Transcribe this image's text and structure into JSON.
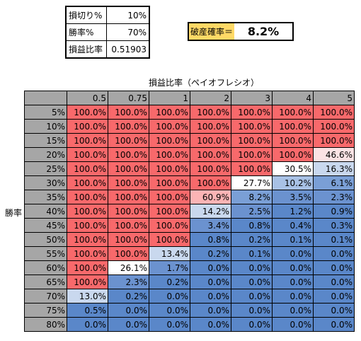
{
  "params": [
    {
      "label": "損切り%",
      "value": "10%"
    },
    {
      "label": "勝率%",
      "value": "70%"
    },
    {
      "label": "損益比率",
      "value": "0.51903"
    }
  ],
  "ruin": {
    "label": "破産確率＝",
    "value": "8.2%"
  },
  "table": {
    "x_header": "損益比率（ペイオフレシオ）",
    "y_header": "勝率",
    "columns": [
      "0.5",
      "0.75",
      "1",
      "2",
      "3",
      "4",
      "5"
    ],
    "rows": [
      {
        "label": "5%",
        "cells": [
          "100.0%",
          "100.0%",
          "100.0%",
          "100.0%",
          "100.0%",
          "100.0%",
          "100.0%"
        ]
      },
      {
        "label": "10%",
        "cells": [
          "100.0%",
          "100.0%",
          "100.0%",
          "100.0%",
          "100.0%",
          "100.0%",
          "100.0%"
        ]
      },
      {
        "label": "15%",
        "cells": [
          "100.0%",
          "100.0%",
          "100.0%",
          "100.0%",
          "100.0%",
          "100.0%",
          "100.0%"
        ]
      },
      {
        "label": "20%",
        "cells": [
          "100.0%",
          "100.0%",
          "100.0%",
          "100.0%",
          "100.0%",
          "100.0%",
          "46.6%"
        ]
      },
      {
        "label": "25%",
        "cells": [
          "100.0%",
          "100.0%",
          "100.0%",
          "100.0%",
          "100.0%",
          "30.5%",
          "16.3%"
        ]
      },
      {
        "label": "30%",
        "cells": [
          "100.0%",
          "100.0%",
          "100.0%",
          "100.0%",
          "27.7%",
          "10.2%",
          "6.1%"
        ]
      },
      {
        "label": "35%",
        "cells": [
          "100.0%",
          "100.0%",
          "100.0%",
          "60.9%",
          "8.2%",
          "3.5%",
          "2.3%"
        ]
      },
      {
        "label": "40%",
        "cells": [
          "100.0%",
          "100.0%",
          "100.0%",
          "14.2%",
          "2.5%",
          "1.2%",
          "0.9%"
        ]
      },
      {
        "label": "45%",
        "cells": [
          "100.0%",
          "100.0%",
          "100.0%",
          "3.4%",
          "0.8%",
          "0.4%",
          "0.3%"
        ]
      },
      {
        "label": "50%",
        "cells": [
          "100.0%",
          "100.0%",
          "100.0%",
          "0.8%",
          "0.2%",
          "0.1%",
          "0.1%"
        ]
      },
      {
        "label": "55%",
        "cells": [
          "100.0%",
          "100.0%",
          "13.4%",
          "0.2%",
          "0.1%",
          "0.0%",
          "0.0%"
        ]
      },
      {
        "label": "60%",
        "cells": [
          "100.0%",
          "26.1%",
          "1.7%",
          "0.0%",
          "0.0%",
          "0.0%",
          "0.0%"
        ]
      },
      {
        "label": "65%",
        "cells": [
          "100.0%",
          "2.3%",
          "0.2%",
          "0.0%",
          "0.0%",
          "0.0%",
          "0.0%"
        ]
      },
      {
        "label": "70%",
        "cells": [
          "13.0%",
          "0.2%",
          "0.0%",
          "0.0%",
          "0.0%",
          "0.0%",
          "0.0%"
        ]
      },
      {
        "label": "75%",
        "cells": [
          "0.5%",
          "0.0%",
          "0.0%",
          "0.0%",
          "0.0%",
          "0.0%",
          "0.0%"
        ]
      },
      {
        "label": "80%",
        "cells": [
          "0.0%",
          "0.0%",
          "0.0%",
          "0.0%",
          "0.0%",
          "0.0%",
          "0.0%"
        ]
      }
    ]
  },
  "colors": {
    "header_gray": "#a6a6a6",
    "red": "#f8696b",
    "light_red": "#fbb4b5",
    "pale_red": "#fbe3e4",
    "white": "#ffffff",
    "pale_blue": "#c9d8ee",
    "light_blue": "#a8c1e5",
    "blue": "#7a9fd6",
    "mid_blue": "#6b92cf",
    "dark_blue": "#5a87c9",
    "ruin_label_bg": "#ffd966"
  }
}
